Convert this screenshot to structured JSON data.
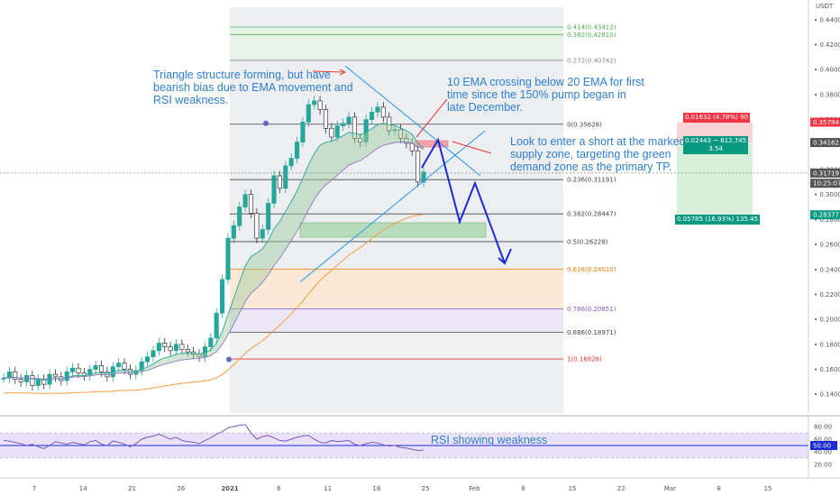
{
  "currency": "USDT",
  "chart_data": {
    "type": "line",
    "title": "",
    "series": [
      {
        "values": [
          0.153,
          0.158,
          0.152,
          0.15,
          0.155,
          0.147,
          0.152,
          0.148,
          0.156,
          0.154,
          0.151,
          0.158,
          0.161,
          0.157,
          0.155,
          0.16,
          0.163,
          0.158,
          0.154,
          0.162,
          0.165,
          0.16,
          0.156,
          0.159,
          0.166,
          0.17,
          0.175,
          0.181,
          0.178,
          0.175,
          0.18,
          0.176,
          0.174,
          0.172,
          0.17,
          0.178,
          0.185,
          0.205,
          0.232,
          0.265,
          0.275,
          0.29,
          0.3,
          0.285,
          0.265,
          0.272,
          0.293,
          0.315,
          0.305,
          0.323,
          0.329,
          0.342,
          0.358,
          0.372,
          0.375,
          0.368,
          0.353,
          0.346,
          0.355,
          0.357,
          0.362,
          0.345,
          0.342,
          0.36,
          0.366,
          0.37,
          0.362,
          0.351,
          0.352,
          0.345,
          0.341,
          0.335,
          0.31,
          0.318
        ]
      }
    ],
    "x_ticks": [
      "7",
      "14",
      "21",
      "26",
      "2021",
      "6",
      "11",
      "18",
      "25",
      "Feb",
      "8",
      "15",
      "22",
      "Mar",
      "8",
      "15"
    ],
    "y_ticks": [
      "0.44000",
      "0.42000",
      "0.40000",
      "0.38000",
      "0.36000",
      "0.34000",
      "0.32000",
      "0.30000",
      "0.28000",
      "0.26000",
      "0.24000",
      "0.22000",
      "0.20000",
      "0.18000",
      "0.16000",
      "0.14000"
    ],
    "ylim": [
      0.125,
      0.45
    ],
    "fib_levels": [
      {
        "ratio": "0.414",
        "price": 0.43412,
        "label": "0.414(0.43412)",
        "color": "#4caf50"
      },
      {
        "ratio": "0.382",
        "price": 0.4281,
        "label": "0.382(0.42810)",
        "color": "#4caf50"
      },
      {
        "ratio": "0.272",
        "price": 0.40742,
        "label": "0.272(0.40742)",
        "color": "#888888"
      },
      {
        "ratio": "0",
        "price": 0.35628,
        "label": "0(0.35628)",
        "color": "#444444"
      },
      {
        "ratio": "0.236",
        "price": 0.31191,
        "label": "0.236(0.31191)",
        "color": "#444444"
      },
      {
        "ratio": "0.382",
        "price": 0.28447,
        "label": "0.382(0.28447)",
        "color": "#444444"
      },
      {
        "ratio": "0.5",
        "price": 0.26228,
        "label": "0.5(0.26228)",
        "color": "#444444"
      },
      {
        "ratio": "0.618",
        "price": 0.2401,
        "label": "0.618(0.24010)",
        "color": "#f57c00"
      },
      {
        "ratio": "0.786",
        "price": 0.20851,
        "label": "0.786(0.20851)",
        "color": "#7e57c2"
      },
      {
        "ratio": "0.886",
        "price": 0.18971,
        "label": "0.886(0.18971)",
        "color": "#444444"
      },
      {
        "ratio": "1",
        "price": 0.16828,
        "label": "1(0.16828)",
        "color": "#e53935"
      }
    ],
    "price_tags": [
      {
        "price": 0.35794,
        "label": "0.35794",
        "color": "#f23645"
      },
      {
        "price": 0.34162,
        "label": "0.34162",
        "color": "#555555"
      },
      {
        "price": 0.31719,
        "label": "0.31719",
        "color": "#555555"
      },
      {
        "price": 0.309,
        "label": "10:25:07",
        "color": "#555555"
      },
      {
        "price": 0.28377,
        "label": "0.28377",
        "color": "#089981"
      }
    ],
    "rsi": {
      "y_ticks": [
        "80.00",
        "60.00",
        "40.00",
        "20.00"
      ],
      "level_label": "50.00",
      "values": [
        58,
        57,
        55,
        53,
        50,
        52,
        48,
        45,
        50,
        56,
        54,
        52,
        55,
        53,
        51,
        56,
        58,
        52,
        50,
        57,
        55,
        52,
        48,
        53,
        60,
        63,
        65,
        68,
        64,
        60,
        63,
        58,
        56,
        55,
        53,
        58,
        62,
        68,
        72,
        78,
        80,
        82,
        83,
        70,
        60,
        64,
        66,
        62,
        58,
        57,
        60,
        63,
        65,
        66,
        60,
        55,
        54,
        58,
        56,
        57,
        58,
        52,
        50,
        53,
        55,
        54,
        51,
        49,
        50,
        47,
        46,
        44,
        42,
        43
      ]
    },
    "position": {
      "stop_label": "0.01632 (4.78%) 90",
      "entry_label": "0.02443 ~ 612.745",
      "rr_label": "3.54",
      "target_label": "0.05785 (16.93%) 135.45"
    }
  },
  "annotations": {
    "triangle": "Triangle structure forming, but have\nbearish bias due to EMA movement and\nRSI weakness.",
    "ema": "10 EMA crossing below 20 EMA for first\ntime since the 150% pump began in\nlate December.",
    "short": "Look to enter a short at the marked\nsupply zone, targeting the green\ndemand zone as the primary TP.",
    "rsi": "RSI showing weakness"
  }
}
